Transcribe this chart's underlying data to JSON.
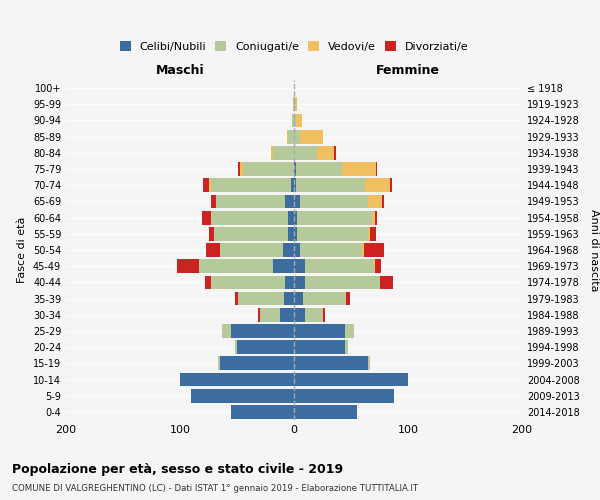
{
  "age_groups": [
    "0-4",
    "5-9",
    "10-14",
    "15-19",
    "20-24",
    "25-29",
    "30-34",
    "35-39",
    "40-44",
    "45-49",
    "50-54",
    "55-59",
    "60-64",
    "65-69",
    "70-74",
    "75-79",
    "80-84",
    "85-89",
    "90-94",
    "95-99",
    "100+"
  ],
  "birth_years": [
    "2014-2018",
    "2009-2013",
    "2004-2008",
    "1999-2003",
    "1994-1998",
    "1989-1993",
    "1984-1988",
    "1979-1983",
    "1974-1978",
    "1969-1973",
    "1964-1968",
    "1959-1963",
    "1954-1958",
    "1949-1953",
    "1944-1948",
    "1939-1943",
    "1934-1938",
    "1929-1933",
    "1924-1928",
    "1919-1923",
    "≤ 1918"
  ],
  "male": {
    "celibi": [
      55,
      90,
      100,
      65,
      50,
      55,
      12,
      9,
      8,
      18,
      10,
      5,
      5,
      8,
      3,
      0,
      0,
      0,
      0,
      0,
      0
    ],
    "coniugati": [
      0,
      0,
      0,
      2,
      2,
      8,
      18,
      40,
      65,
      65,
      55,
      65,
      68,
      60,
      70,
      45,
      18,
      5,
      2,
      1,
      0
    ],
    "vedovi": [
      0,
      0,
      0,
      0,
      0,
      0,
      0,
      0,
      0,
      0,
      0,
      0,
      0,
      0,
      2,
      2,
      2,
      1,
      0,
      0,
      0
    ],
    "divorziati": [
      0,
      0,
      0,
      0,
      0,
      0,
      2,
      3,
      5,
      20,
      12,
      5,
      8,
      5,
      5,
      2,
      0,
      0,
      0,
      0,
      0
    ]
  },
  "female": {
    "nubili": [
      55,
      88,
      100,
      65,
      45,
      45,
      10,
      8,
      10,
      10,
      5,
      3,
      3,
      5,
      2,
      2,
      0,
      0,
      0,
      0,
      0
    ],
    "coniugate": [
      0,
      0,
      0,
      2,
      2,
      8,
      15,
      38,
      65,
      60,
      55,
      62,
      65,
      60,
      60,
      40,
      20,
      5,
      2,
      1,
      0
    ],
    "vedove": [
      0,
      0,
      0,
      0,
      0,
      0,
      0,
      0,
      0,
      1,
      1,
      2,
      3,
      12,
      22,
      30,
      15,
      20,
      5,
      2,
      0
    ],
    "divorziate": [
      0,
      0,
      0,
      0,
      0,
      0,
      2,
      3,
      12,
      5,
      18,
      5,
      2,
      2,
      2,
      1,
      2,
      0,
      0,
      0,
      0
    ]
  },
  "colors": {
    "celibi": "#3d6d9e",
    "coniugati": "#b5c99a",
    "vedovi": "#f0c060",
    "divorziati": "#cc2222"
  },
  "title": "Popolazione per età, sesso e stato civile - 2019",
  "subtitle": "COMUNE DI VALGREGHENTINO (LC) - Dati ISTAT 1° gennaio 2019 - Elaborazione TUTTITALIA.IT",
  "xlabel_left": "Maschi",
  "xlabel_right": "Femmine",
  "ylabel_left": "Fasce di età",
  "ylabel_right": "Anni di nascita",
  "xlim": 200,
  "background_color": "#f5f5f5"
}
